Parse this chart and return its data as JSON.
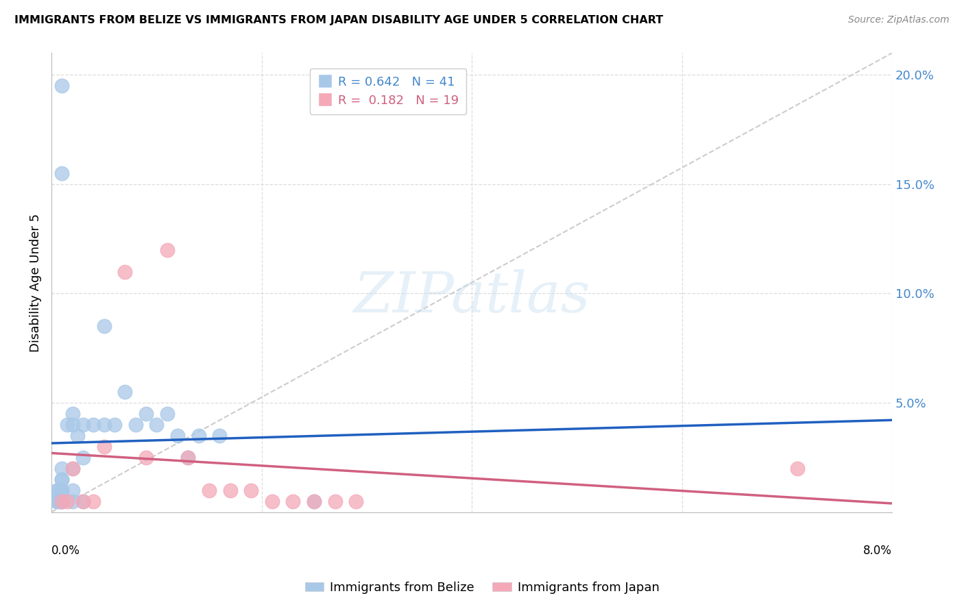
{
  "title": "IMMIGRANTS FROM BELIZE VS IMMIGRANTS FROM JAPAN DISABILITY AGE UNDER 5 CORRELATION CHART",
  "source": "Source: ZipAtlas.com",
  "ylabel": "Disability Age Under 5",
  "legend_belize": "Immigrants from Belize",
  "legend_japan": "Immigrants from Japan",
  "r_belize": 0.642,
  "n_belize": 41,
  "r_japan": 0.182,
  "n_japan": 19,
  "color_belize": "#A8C8E8",
  "color_japan": "#F4A8B8",
  "color_belize_line": "#2060C0",
  "color_japan_line": "#D06080",
  "color_grid": "#DDDDDD",
  "color_diag": "#CCCCCC",
  "right_yaxis_color": "#4488CC",
  "belize_x": [
    0.1,
    0.15,
    0.2,
    0.2,
    0.25,
    0.3,
    0.3,
    0.4,
    0.5,
    0.5,
    0.6,
    0.7,
    0.8,
    0.9,
    1.0,
    1.1,
    1.2,
    1.3,
    1.4,
    1.6,
    0.1,
    0.1,
    0.1,
    0.1,
    0.05,
    0.08,
    0.1,
    0.05,
    0.1,
    0.1,
    0.2,
    0.2,
    0.1,
    0.1,
    0.05,
    0.05,
    0.1,
    0.2,
    0.3,
    2.5,
    0.1
  ],
  "belize_y": [
    1.0,
    4.0,
    4.5,
    4.0,
    3.5,
    4.0,
    2.5,
    4.0,
    4.0,
    8.5,
    4.0,
    5.5,
    4.0,
    4.5,
    4.0,
    4.5,
    3.5,
    2.5,
    3.5,
    3.5,
    19.5,
    15.5,
    1.0,
    1.5,
    0.5,
    0.5,
    0.5,
    1.0,
    1.0,
    1.5,
    1.0,
    2.0,
    2.0,
    0.5,
    0.5,
    1.0,
    0.5,
    0.5,
    0.5,
    0.5,
    0.5
  ],
  "japan_x": [
    0.1,
    0.15,
    0.2,
    0.3,
    0.5,
    0.7,
    0.9,
    1.1,
    1.3,
    1.5,
    1.7,
    1.9,
    2.1,
    2.3,
    2.5,
    2.7,
    2.9,
    7.1,
    0.4
  ],
  "japan_y": [
    0.5,
    0.5,
    2.0,
    0.5,
    3.0,
    11.0,
    2.5,
    12.0,
    2.5,
    1.0,
    1.0,
    1.0,
    0.5,
    0.5,
    0.5,
    0.5,
    0.5,
    2.0,
    0.5
  ],
  "xlim_pct": [
    0.0,
    8.0
  ],
  "ylim_pct": [
    0.0,
    21.0
  ],
  "xtick_pct": [
    0.0,
    2.0,
    4.0,
    6.0,
    8.0
  ],
  "ytick_pct": [
    0.0,
    5.0,
    10.0,
    15.0,
    20.0
  ],
  "right_ytick_labels": [
    "",
    "5.0%",
    "10.0%",
    "15.0%",
    "20.0%"
  ]
}
